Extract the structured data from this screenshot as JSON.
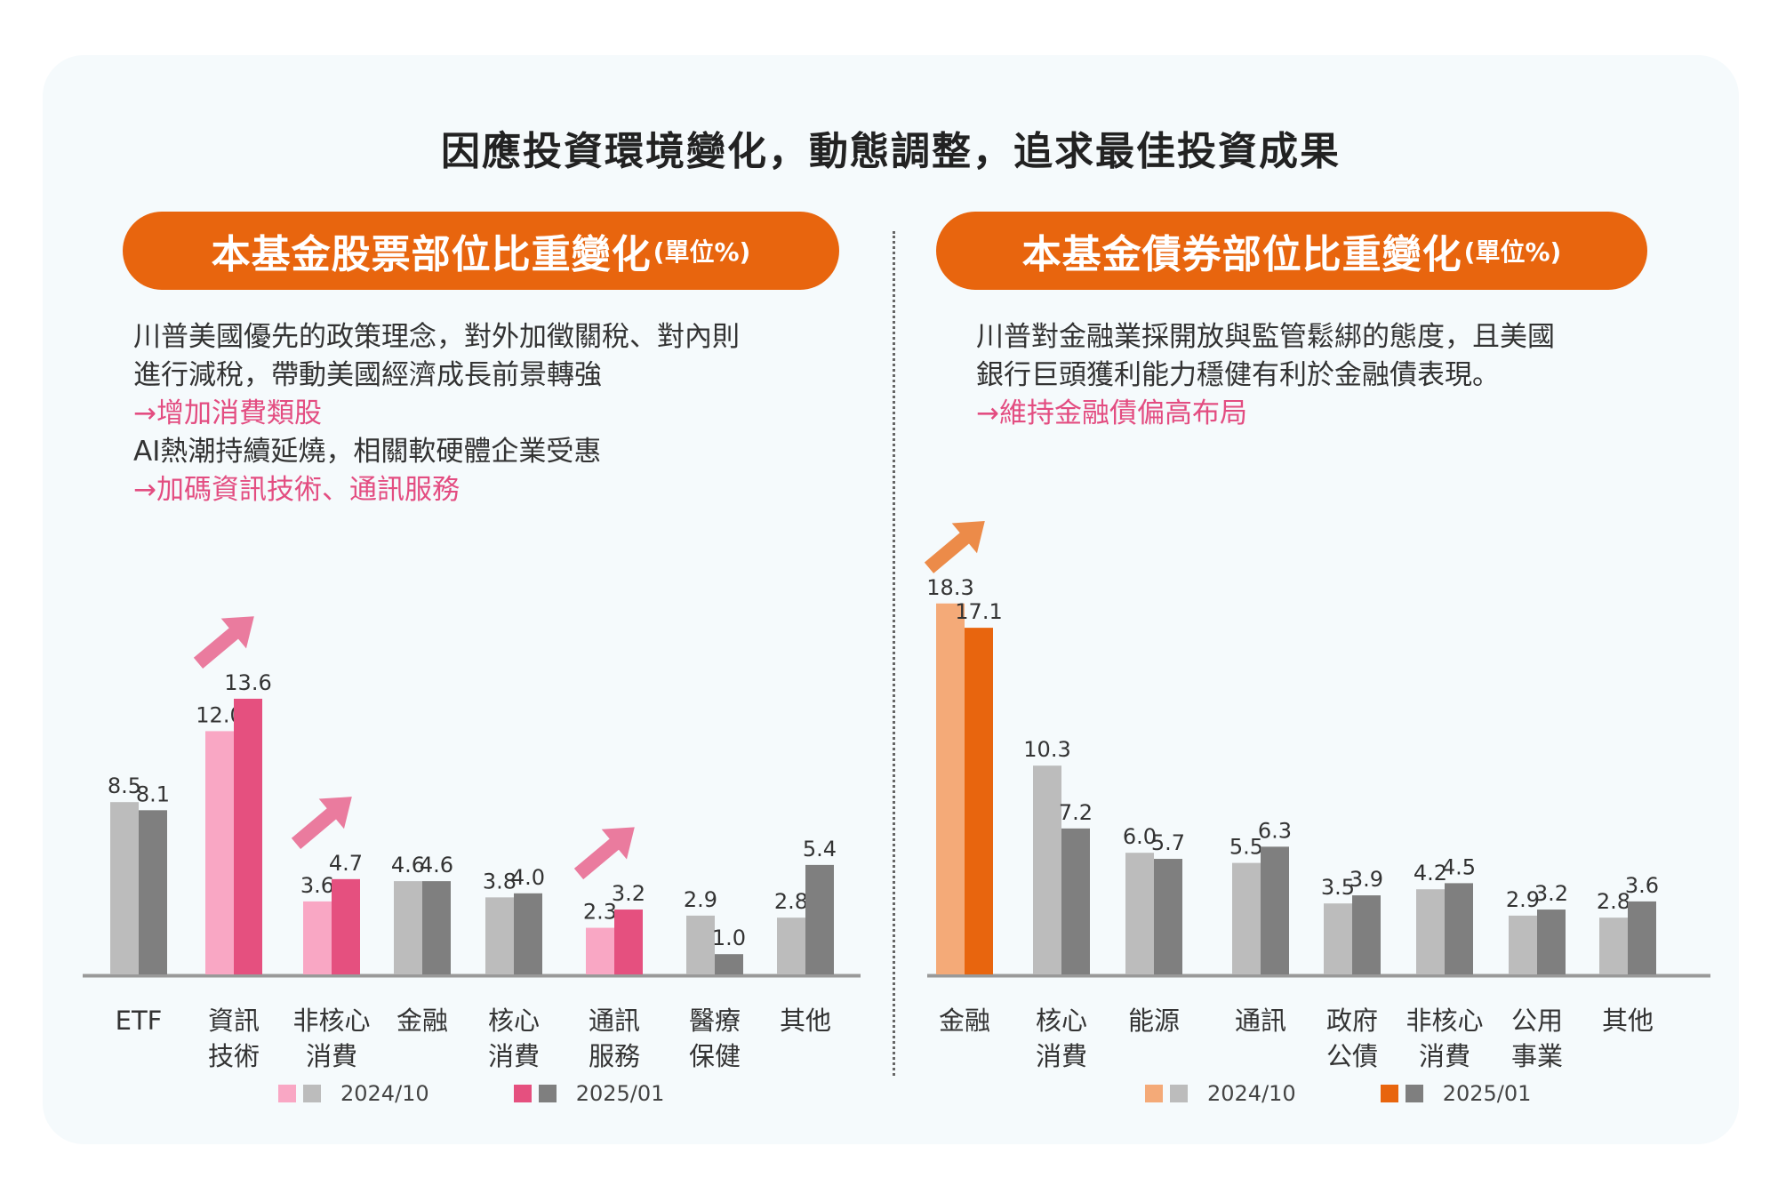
{
  "main_title": "因應投資環境變化，動態調整，追求最佳投資成果",
  "left_panel": {
    "heading": "本基金股票部位比重變化",
    "heading_unit": "(單位%)",
    "description": [
      {
        "text": "川普美國優先的政策理念，對外加徵關稅、對內則",
        "highlight": false
      },
      {
        "text": "進行減稅，帶動美國經濟成長前景轉強",
        "highlight": false
      },
      {
        "text": "→增加消費類股",
        "highlight": true
      },
      {
        "text": "AI熱潮持續延燒，相關軟硬體企業受惠",
        "highlight": false
      },
      {
        "text": "→加碼資訊技術、通訊服務",
        "highlight": true
      }
    ],
    "legend": [
      "2024/10",
      "2025/01"
    ]
  },
  "right_panel": {
    "heading": "本基金債券部位比重變化",
    "heading_unit": "(單位%)",
    "description": [
      {
        "text": "川普對金融業採開放與監管鬆綁的態度，且美國",
        "highlight": false
      },
      {
        "text": "銀行巨頭獲利能力穩健有利於金融債表現。",
        "highlight": false
      },
      {
        "text": "→維持金融債偏高布局",
        "highlight": true
      }
    ],
    "legend": [
      "2024/10",
      "2025/01"
    ]
  },
  "colors": {
    "gray_light": "#bcbcbc",
    "gray_dark": "#7f7f7f",
    "pink_light": "#f9a7c4",
    "pink_dark": "#e5507f",
    "orange_light": "#f4aa78",
    "orange_dark": "#e8650e",
    "accent_orange": "#e8650e",
    "accent_pink": "#e34d81"
  },
  "chart_data": [
    {
      "type": "bar",
      "categories": [
        "ETF",
        "資訊\n技術",
        "非核心\n消費",
        "金融",
        "核心\n消費",
        "通訊\n服務",
        "醫療\n保健",
        "其他"
      ],
      "series": [
        {
          "name": "2024/10",
          "values": [
            8.5,
            12.0,
            3.6,
            4.6,
            3.8,
            2.3,
            2.9,
            2.8
          ]
        },
        {
          "name": "2025/01",
          "values": [
            8.1,
            13.6,
            4.7,
            4.6,
            4.0,
            3.2,
            1.0,
            5.4
          ]
        }
      ],
      "value_labels": [
        [
          "8.5",
          "12.0",
          "3.6",
          "4.6",
          "3.8",
          "2.3",
          "2.9",
          "2.8"
        ],
        [
          "8.1",
          "13.6",
          "4.7",
          "4.6",
          "4.0",
          "3.2",
          "1.0",
          "5.4"
        ]
      ],
      "highlight": [
        1,
        2,
        5
      ],
      "up_arrows": [
        1,
        2,
        5
      ],
      "ylim": [
        0,
        19
      ],
      "grid": false,
      "legend_position": "bottom"
    },
    {
      "type": "bar",
      "categories": [
        "金融",
        "核心\n消費",
        "能源",
        "通訊",
        "政府\n公債",
        "非核心\n消費",
        "公用\n事業",
        "其他"
      ],
      "series": [
        {
          "name": "2024/10",
          "values": [
            18.3,
            10.3,
            6.0,
            5.5,
            3.5,
            4.2,
            2.9,
            2.8
          ]
        },
        {
          "name": "2025/01",
          "values": [
            17.1,
            7.2,
            5.7,
            6.3,
            3.9,
            4.5,
            3.2,
            3.6
          ]
        }
      ],
      "value_labels": [
        [
          "18.3",
          "10.3",
          "6.0",
          "5.5",
          "3.5",
          "4.2",
          "2.9",
          "2.8"
        ],
        [
          "17.1",
          "7.2",
          "5.7",
          "6.3",
          "3.9",
          "4.5",
          "3.2",
          "3.6"
        ]
      ],
      "highlight": [
        0
      ],
      "up_arrows": [
        0
      ],
      "ylim": [
        0,
        19
      ],
      "grid": false,
      "legend_position": "bottom"
    }
  ]
}
